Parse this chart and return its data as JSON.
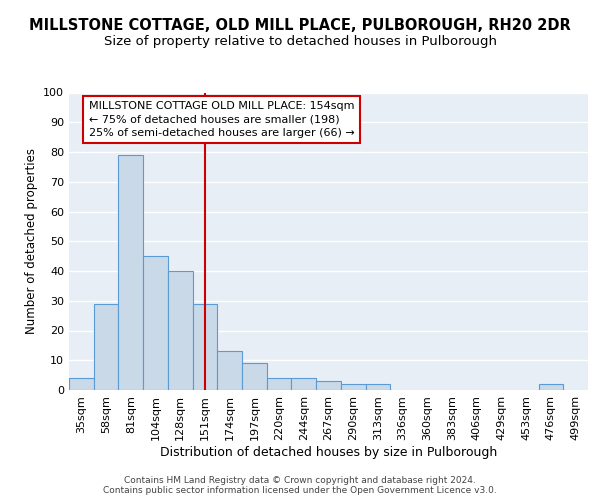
{
  "title": "MILLSTONE COTTAGE, OLD MILL PLACE, PULBOROUGH, RH20 2DR",
  "subtitle": "Size of property relative to detached houses in Pulborough",
  "xlabel": "Distribution of detached houses by size in Pulborough",
  "ylabel": "Number of detached properties",
  "categories": [
    "35sqm",
    "58sqm",
    "81sqm",
    "104sqm",
    "128sqm",
    "151sqm",
    "174sqm",
    "197sqm",
    "220sqm",
    "244sqm",
    "267sqm",
    "290sqm",
    "313sqm",
    "336sqm",
    "360sqm",
    "383sqm",
    "406sqm",
    "429sqm",
    "453sqm",
    "476sqm",
    "499sqm"
  ],
  "values": [
    4,
    29,
    79,
    45,
    40,
    29,
    13,
    9,
    4,
    4,
    3,
    2,
    2,
    0,
    0,
    0,
    0,
    0,
    0,
    2,
    0
  ],
  "bar_color": "#c9d9e8",
  "bar_edge_color": "#5b9bd5",
  "bar_edge_width": 0.8,
  "red_line_index": 5,
  "red_line_color": "#cc0000",
  "annotation_text": "MILLSTONE COTTAGE OLD MILL PLACE: 154sqm\n← 75% of detached houses are smaller (198)\n25% of semi-detached houses are larger (66) →",
  "annotation_box_color": "#ffffff",
  "annotation_box_edge_color": "#cc0000",
  "ylim": [
    0,
    100
  ],
  "yticks": [
    0,
    10,
    20,
    30,
    40,
    50,
    60,
    70,
    80,
    90,
    100
  ],
  "title_fontsize": 10.5,
  "subtitle_fontsize": 9.5,
  "xlabel_fontsize": 9,
  "ylabel_fontsize": 8.5,
  "tick_fontsize": 8,
  "annotation_fontsize": 8,
  "footer_line1": "Contains HM Land Registry data © Crown copyright and database right 2024.",
  "footer_line2": "Contains public sector information licensed under the Open Government Licence v3.0.",
  "footer_fontsize": 6.5,
  "background_color": "#e8eef5",
  "grid_color": "#ffffff",
  "fig_background": "#ffffff"
}
